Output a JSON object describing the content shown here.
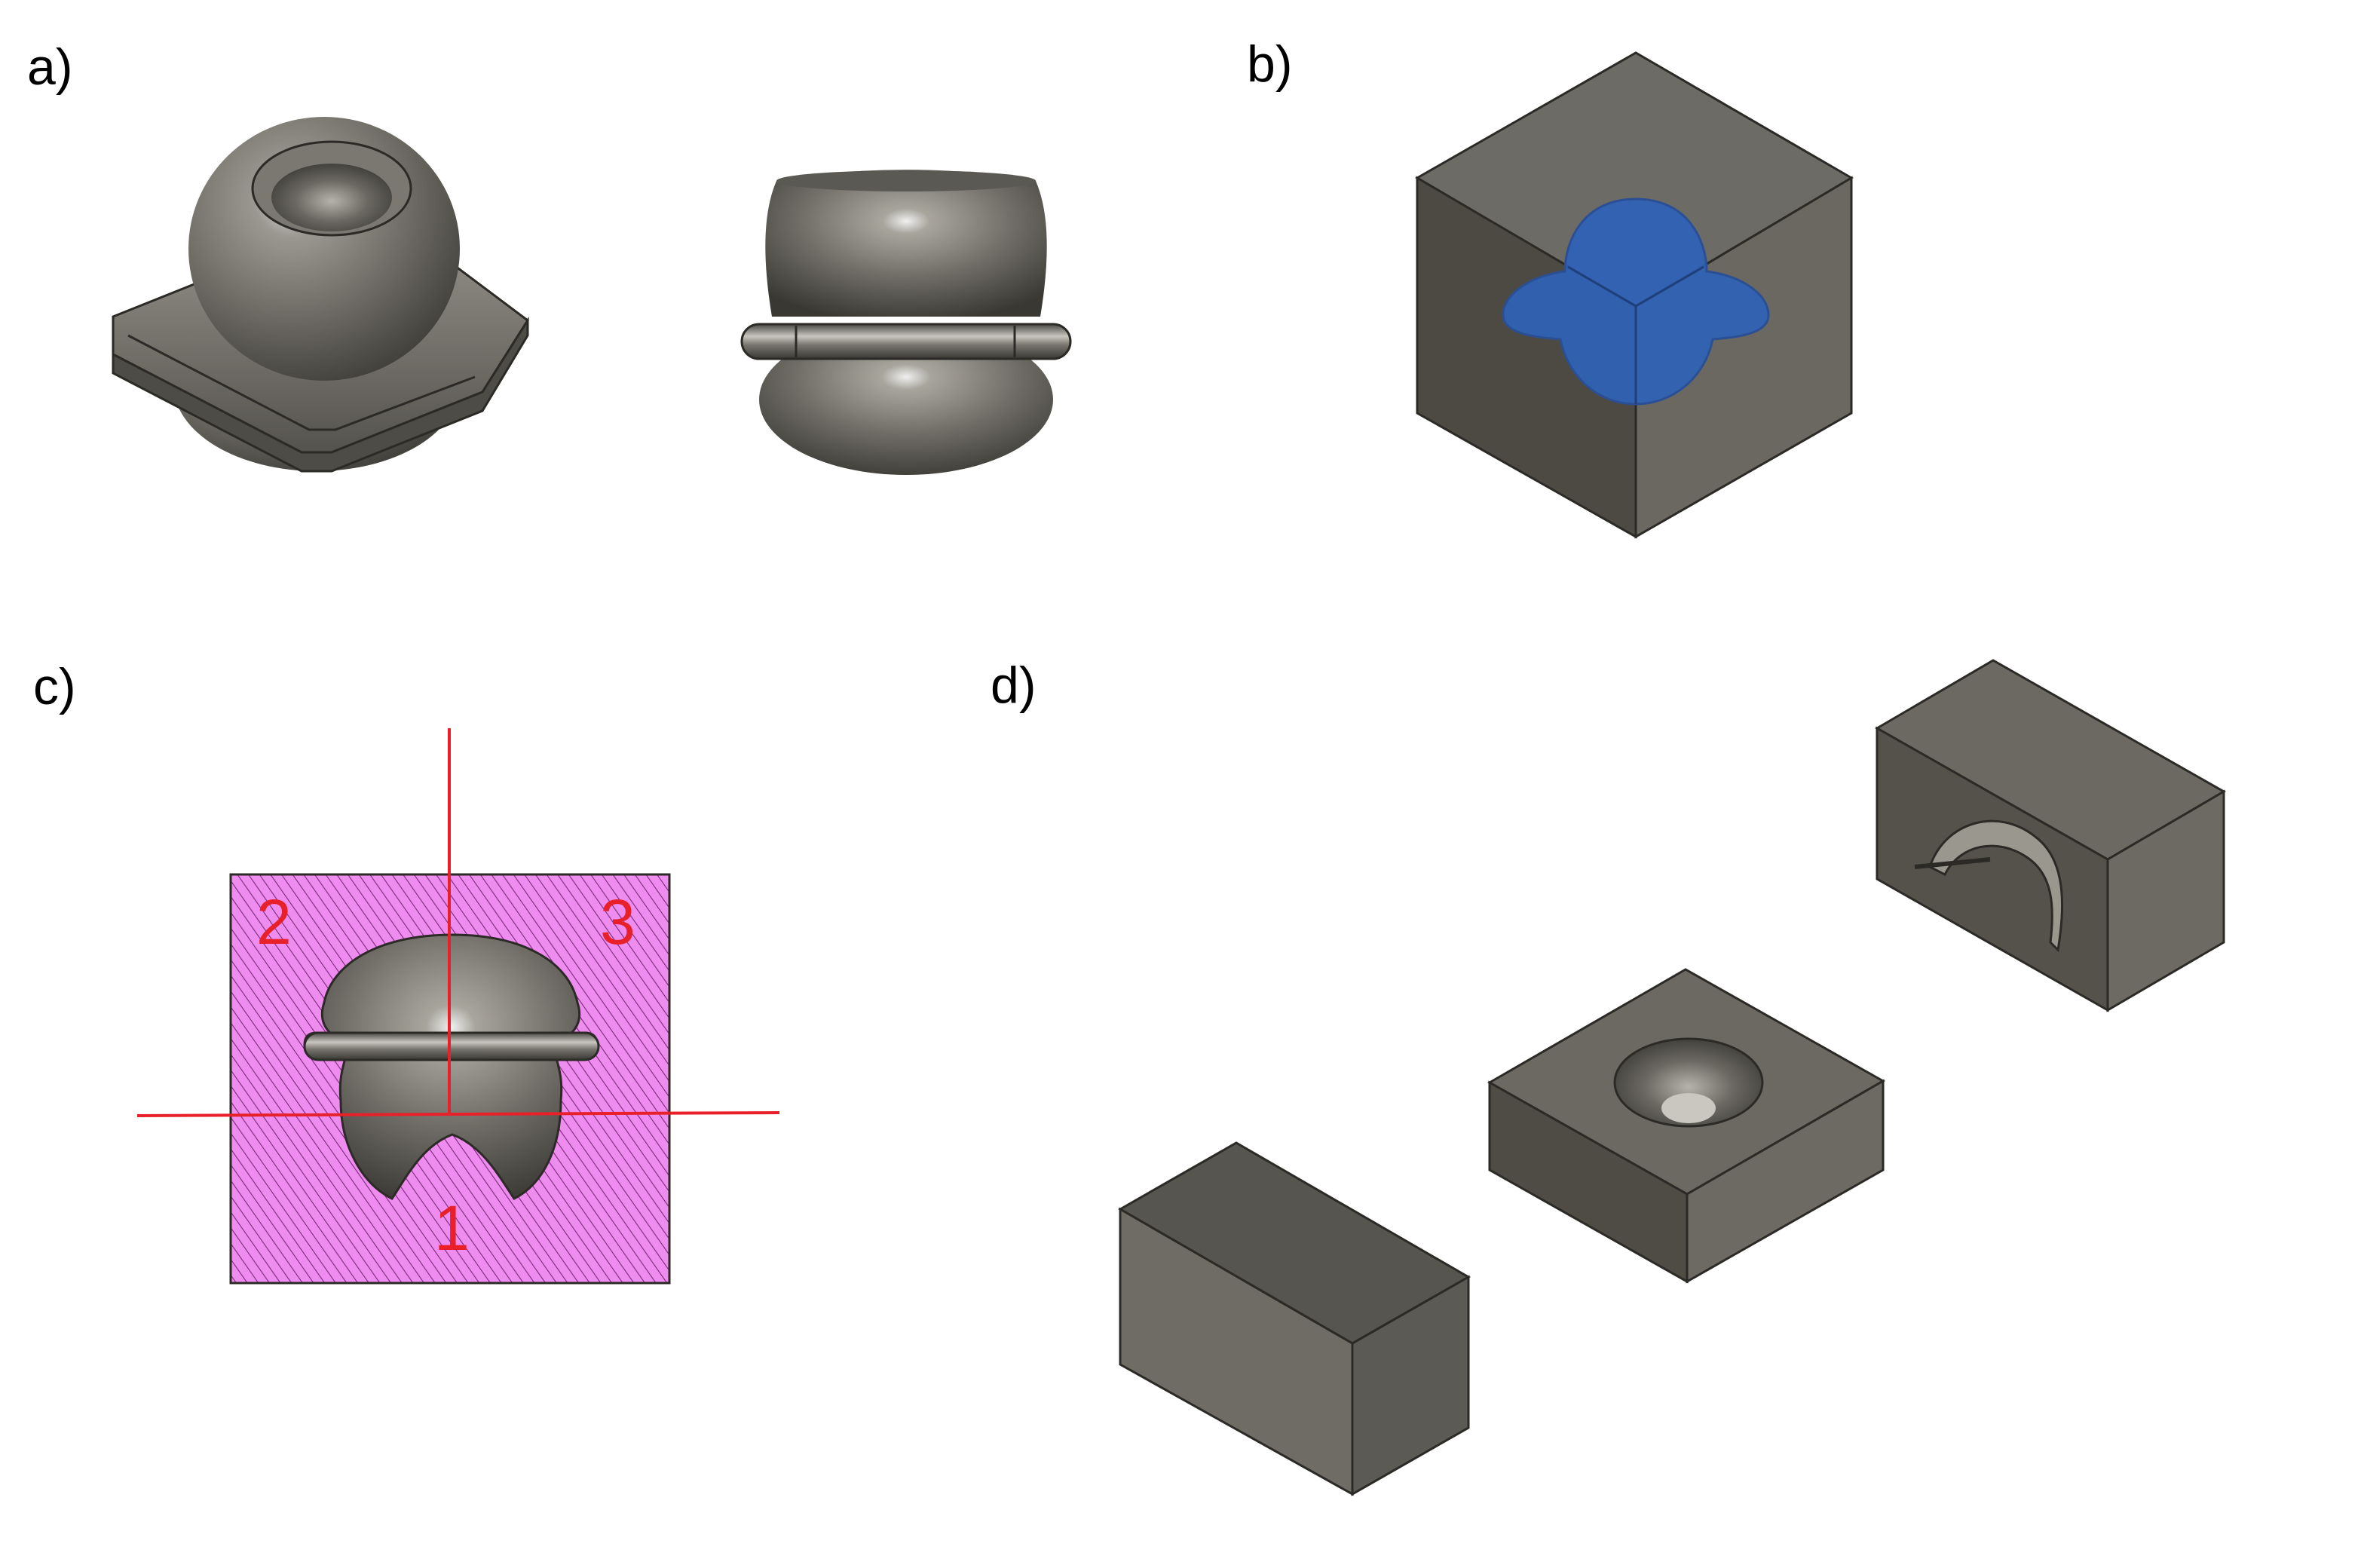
{
  "figure": {
    "panels": [
      {
        "label": "a)"
      },
      {
        "label": "b)"
      },
      {
        "label": "c)"
      },
      {
        "label": "d)"
      }
    ],
    "section_view": {
      "region_labels": [
        "1",
        "2",
        "3"
      ]
    }
  },
  "colors": {
    "background": "#ffffff",
    "model_gray": "#6b6962",
    "model_gray_dark": "#4b4842",
    "section_blue": "#2f62b8",
    "hatch_pink": "#ef8cef",
    "hatch_line": "#7a2a7a",
    "cut_line_red": "#e8202a"
  },
  "icons": {
    "panel_a_left": "mold-part-3d-iso-icon",
    "panel_a_right": "mold-part-3d-front-icon",
    "panel_b": "mold-block-section-icon",
    "panel_c": "hatched-section-cut-plan-icon",
    "panel_d": "split-mold-blocks-exploded-icon"
  }
}
